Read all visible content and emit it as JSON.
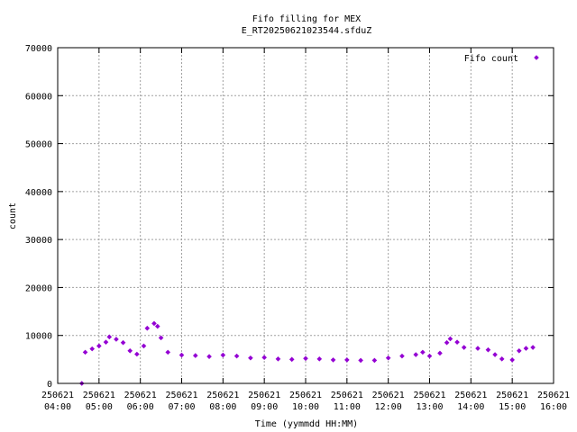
{
  "chart_data": {
    "type": "scatter",
    "title": "Fifo filling for MEX",
    "subtitle": "E_RT20250621023544.sfduZ",
    "xlabel": "Time (yymmdd HH:MM)",
    "ylabel": "count",
    "xlim": [
      "250621 04:00",
      "250621 16:00"
    ],
    "ylim": [
      0,
      70000
    ],
    "grid": true,
    "legend_position": "top-right",
    "x_ticks": [
      {
        "date": "250621",
        "time": "04:00"
      },
      {
        "date": "250621",
        "time": "05:00"
      },
      {
        "date": "250621",
        "time": "06:00"
      },
      {
        "date": "250621",
        "time": "07:00"
      },
      {
        "date": "250621",
        "time": "08:00"
      },
      {
        "date": "250621",
        "time": "09:00"
      },
      {
        "date": "250621",
        "time": "10:00"
      },
      {
        "date": "250621",
        "time": "11:00"
      },
      {
        "date": "250621",
        "time": "12:00"
      },
      {
        "date": "250621",
        "time": "13:00"
      },
      {
        "date": "250621",
        "time": "14:00"
      },
      {
        "date": "250621",
        "time": "15:00"
      },
      {
        "date": "250621",
        "time": "16:00"
      }
    ],
    "y_ticks": [
      "0",
      "10000",
      "20000",
      "30000",
      "40000",
      "50000",
      "60000",
      "70000"
    ],
    "series": [
      {
        "name": "Fifo count",
        "color": "#9400d3",
        "marker": "diamond",
        "points": [
          [
            "04:35",
            0
          ],
          [
            "04:40",
            6500
          ],
          [
            "04:50",
            7200
          ],
          [
            "05:00",
            7800
          ],
          [
            "05:10",
            8600
          ],
          [
            "05:15",
            9700
          ],
          [
            "05:25",
            9200
          ],
          [
            "05:35",
            8500
          ],
          [
            "05:45",
            6800
          ],
          [
            "05:55",
            6100
          ],
          [
            "06:05",
            7800
          ],
          [
            "06:10",
            11500
          ],
          [
            "06:20",
            12500
          ],
          [
            "06:25",
            11900
          ],
          [
            "06:30",
            9500
          ],
          [
            "06:40",
            6500
          ],
          [
            "07:00",
            5900
          ],
          [
            "07:20",
            5800
          ],
          [
            "07:40",
            5600
          ],
          [
            "08:00",
            5900
          ],
          [
            "08:20",
            5700
          ],
          [
            "08:40",
            5300
          ],
          [
            "09:00",
            5400
          ],
          [
            "09:20",
            5100
          ],
          [
            "09:40",
            5000
          ],
          [
            "10:00",
            5200
          ],
          [
            "10:20",
            5100
          ],
          [
            "10:40",
            4900
          ],
          [
            "11:00",
            4900
          ],
          [
            "11:20",
            4800
          ],
          [
            "11:40",
            4800
          ],
          [
            "12:00",
            5300
          ],
          [
            "12:20",
            5700
          ],
          [
            "12:40",
            6000
          ],
          [
            "12:50",
            6500
          ],
          [
            "13:00",
            5700
          ],
          [
            "13:15",
            6300
          ],
          [
            "13:25",
            8500
          ],
          [
            "13:30",
            9300
          ],
          [
            "13:40",
            8600
          ],
          [
            "13:50",
            7500
          ],
          [
            "14:10",
            7300
          ],
          [
            "14:25",
            7000
          ],
          [
            "14:35",
            6000
          ],
          [
            "14:45",
            5100
          ],
          [
            "15:00",
            4900
          ],
          [
            "15:10",
            6800
          ],
          [
            "15:20",
            7300
          ],
          [
            "15:30",
            7500
          ]
        ]
      }
    ]
  }
}
